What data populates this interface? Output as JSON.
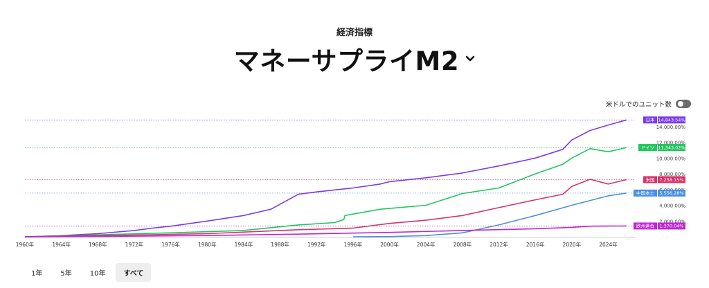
{
  "header": {
    "subtitle": "経済指標",
    "title": "マネーサプライM2"
  },
  "toggle": {
    "label": "米ドルでのユニット数",
    "on": false
  },
  "ranges": [
    {
      "label": "1年",
      "active": false
    },
    {
      "label": "5年",
      "active": false
    },
    {
      "label": "10年",
      "active": false
    },
    {
      "label": "すべて",
      "active": true
    }
  ],
  "chart_data": {
    "type": "line",
    "x_ticks": [
      "1960年",
      "1964年",
      "1968年",
      "1972年",
      "1976年",
      "1980年",
      "1984年",
      "1988年",
      "1992年",
      "1996年",
      "2000年",
      "2004年",
      "2008年",
      "2012年",
      "2016年",
      "2020年",
      "2024年"
    ],
    "xlim": [
      1960,
      2027
    ],
    "ylim": [
      0,
      15000
    ],
    "y_ticks": [
      {
        "value": 2000,
        "label": "2,000.00%"
      },
      {
        "value": 4000,
        "label": "4,000.00%"
      },
      {
        "value": 6000,
        "label": "6,000.00%"
      },
      {
        "value": 8000,
        "label": "8,000.00%"
      },
      {
        "value": 10000,
        "label": "10,000.00%"
      },
      {
        "value": 12000,
        "label": "12,000.00%"
      },
      {
        "value": 14000,
        "label": "14,000.00%"
      }
    ],
    "grid": false,
    "series": [
      {
        "name": "日本",
        "color": "#7c3aed",
        "last_label": "14,843.54%",
        "points": [
          [
            1960,
            0
          ],
          [
            1964,
            150
          ],
          [
            1968,
            400
          ],
          [
            1972,
            800
          ],
          [
            1974,
            1100
          ],
          [
            1976,
            1350
          ],
          [
            1980,
            2000
          ],
          [
            1984,
            2700
          ],
          [
            1987,
            3500
          ],
          [
            1990,
            5400
          ],
          [
            1992,
            5700
          ],
          [
            1996,
            6200
          ],
          [
            1999,
            6700
          ],
          [
            2000,
            7000
          ],
          [
            2004,
            7500
          ],
          [
            2008,
            8100
          ],
          [
            2012,
            9000
          ],
          [
            2016,
            10000
          ],
          [
            2019,
            11100
          ],
          [
            2020,
            12300
          ],
          [
            2022,
            13500
          ],
          [
            2024,
            14200
          ],
          [
            2026,
            14843.54
          ]
        ]
      },
      {
        "name": "ドイツ",
        "color": "#22c55e",
        "last_label": "11,343.02%",
        "points": [
          [
            1960,
            0
          ],
          [
            1968,
            250
          ],
          [
            1976,
            500
          ],
          [
            1984,
            800
          ],
          [
            1990,
            1500
          ],
          [
            1994,
            1800
          ],
          [
            1995,
            2200
          ],
          [
            1995.1,
            2700
          ],
          [
            1999,
            3500
          ],
          [
            2004,
            4000
          ],
          [
            2008,
            5500
          ],
          [
            2012,
            6200
          ],
          [
            2016,
            8000
          ],
          [
            2019,
            9200
          ],
          [
            2020,
            10000
          ],
          [
            2022,
            11200
          ],
          [
            2024,
            10800
          ],
          [
            2026,
            11343.02
          ]
        ]
      },
      {
        "name": "米国",
        "color": "#d6336c",
        "last_label": "7,258.15%",
        "points": [
          [
            1960,
            0
          ],
          [
            1970,
            180
          ],
          [
            1980,
            400
          ],
          [
            1990,
            900
          ],
          [
            1996,
            1100
          ],
          [
            2000,
            1700
          ],
          [
            2004,
            2100
          ],
          [
            2008,
            2700
          ],
          [
            2012,
            3700
          ],
          [
            2016,
            4700
          ],
          [
            2019,
            5400
          ],
          [
            2020,
            6400
          ],
          [
            2022,
            7300
          ],
          [
            2024,
            6700
          ],
          [
            2026,
            7258.15
          ]
        ]
      },
      {
        "name": "中国本土",
        "color": "#4a90e2",
        "last_label": "5,556.28%",
        "points": [
          [
            1996,
            0
          ],
          [
            2000,
            30
          ],
          [
            2004,
            150
          ],
          [
            2008,
            500
          ],
          [
            2012,
            1500
          ],
          [
            2016,
            2700
          ],
          [
            2020,
            4000
          ],
          [
            2024,
            5200
          ],
          [
            2026,
            5556.28
          ]
        ]
      },
      {
        "name": "欧州連合",
        "color": "#c026d3",
        "last_label": "1,370.04%",
        "points": [
          [
            1960,
            0
          ],
          [
            1970,
            60
          ],
          [
            1980,
            160
          ],
          [
            1990,
            330
          ],
          [
            2000,
            550
          ],
          [
            2008,
            800
          ],
          [
            2016,
            1020
          ],
          [
            2020,
            1200
          ],
          [
            2022,
            1350
          ],
          [
            2026,
            1370.04
          ]
        ]
      }
    ]
  }
}
